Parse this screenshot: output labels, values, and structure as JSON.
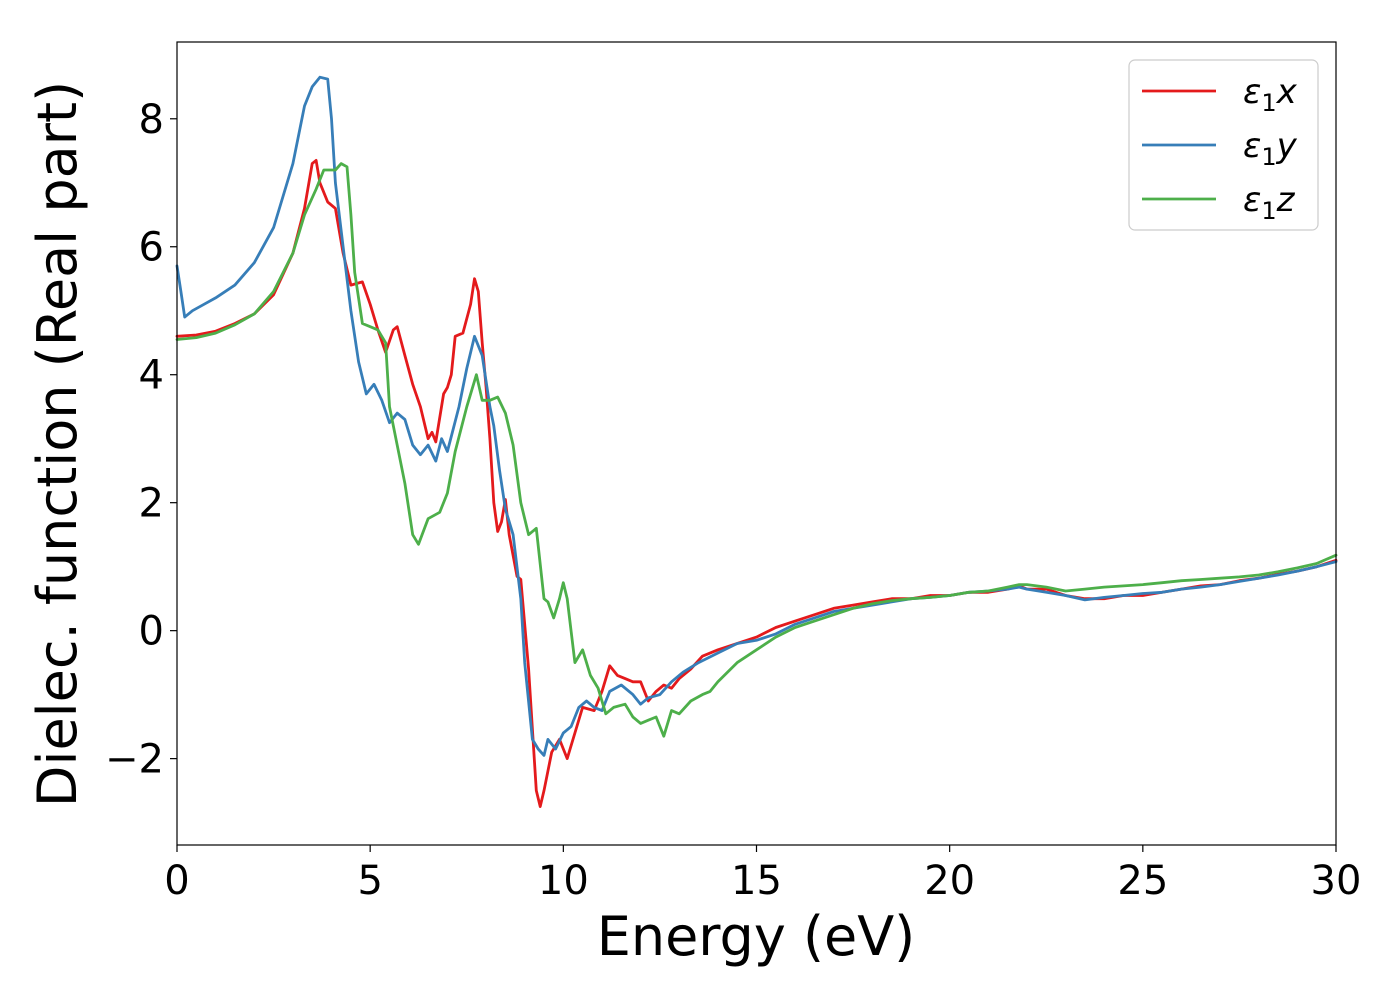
{
  "chart_data": {
    "type": "line",
    "title": "",
    "xlabel": "Energy (eV)",
    "ylabel": "Dielec. function (Real part)",
    "xlim": [
      0,
      30
    ],
    "ylim": [
      -3.35,
      9.2
    ],
    "xticks": [
      0,
      5,
      10,
      15,
      20,
      25,
      30
    ],
    "xtick_labels": [
      "0",
      "5",
      "10",
      "15",
      "20",
      "25",
      "30"
    ],
    "yticks": [
      -2,
      0,
      2,
      4,
      6,
      8
    ],
    "ytick_labels": [
      "−2",
      "0",
      "2",
      "4",
      "6",
      "8"
    ],
    "grid": false,
    "legend_position": "top-right",
    "series": [
      {
        "name": "ε₁x",
        "color": "#e41a1c",
        "points": [
          [
            0,
            4.6
          ],
          [
            0.5,
            4.62
          ],
          [
            1,
            4.68
          ],
          [
            1.5,
            4.8
          ],
          [
            2,
            4.95
          ],
          [
            2.5,
            5.25
          ],
          [
            3,
            5.9
          ],
          [
            3.3,
            6.6
          ],
          [
            3.5,
            7.3
          ],
          [
            3.6,
            7.35
          ],
          [
            3.7,
            7.0
          ],
          [
            3.9,
            6.7
          ],
          [
            4.1,
            6.6
          ],
          [
            4.3,
            5.9
          ],
          [
            4.5,
            5.4
          ],
          [
            4.8,
            5.45
          ],
          [
            5.0,
            5.1
          ],
          [
            5.2,
            4.7
          ],
          [
            5.4,
            4.35
          ],
          [
            5.6,
            4.7
          ],
          [
            5.7,
            4.75
          ],
          [
            5.9,
            4.3
          ],
          [
            6.1,
            3.85
          ],
          [
            6.3,
            3.5
          ],
          [
            6.5,
            3.0
          ],
          [
            6.6,
            3.1
          ],
          [
            6.7,
            2.95
          ],
          [
            6.9,
            3.7
          ],
          [
            7.0,
            3.8
          ],
          [
            7.1,
            4.0
          ],
          [
            7.2,
            4.6
          ],
          [
            7.4,
            4.65
          ],
          [
            7.6,
            5.1
          ],
          [
            7.7,
            5.5
          ],
          [
            7.8,
            5.3
          ],
          [
            7.9,
            4.5
          ],
          [
            8.0,
            3.8
          ],
          [
            8.1,
            3.0
          ],
          [
            8.2,
            2.0
          ],
          [
            8.3,
            1.55
          ],
          [
            8.4,
            1.7
          ],
          [
            8.5,
            2.05
          ],
          [
            8.6,
            1.5
          ],
          [
            8.8,
            0.85
          ],
          [
            8.9,
            0.8
          ],
          [
            9.1,
            -0.6
          ],
          [
            9.3,
            -2.5
          ],
          [
            9.4,
            -2.75
          ],
          [
            9.5,
            -2.5
          ],
          [
            9.7,
            -1.9
          ],
          [
            9.9,
            -1.7
          ],
          [
            10.1,
            -2.0
          ],
          [
            10.3,
            -1.6
          ],
          [
            10.5,
            -1.2
          ],
          [
            10.8,
            -1.25
          ],
          [
            11.0,
            -0.95
          ],
          [
            11.2,
            -0.55
          ],
          [
            11.4,
            -0.7
          ],
          [
            11.6,
            -0.75
          ],
          [
            11.8,
            -0.8
          ],
          [
            12.0,
            -0.8
          ],
          [
            12.2,
            -1.1
          ],
          [
            12.4,
            -0.95
          ],
          [
            12.6,
            -0.85
          ],
          [
            12.8,
            -0.9
          ],
          [
            13.0,
            -0.75
          ],
          [
            13.3,
            -0.6
          ],
          [
            13.6,
            -0.4
          ],
          [
            14.0,
            -0.3
          ],
          [
            14.5,
            -0.2
          ],
          [
            15.0,
            -0.1
          ],
          [
            15.5,
            0.05
          ],
          [
            16.0,
            0.15
          ],
          [
            16.5,
            0.25
          ],
          [
            17.0,
            0.35
          ],
          [
            17.5,
            0.4
          ],
          [
            18.0,
            0.45
          ],
          [
            18.5,
            0.5
          ],
          [
            19.0,
            0.5
          ],
          [
            19.5,
            0.55
          ],
          [
            20.0,
            0.55
          ],
          [
            20.5,
            0.6
          ],
          [
            21.0,
            0.6
          ],
          [
            21.5,
            0.65
          ],
          [
            21.8,
            0.7
          ],
          [
            22.0,
            0.65
          ],
          [
            22.5,
            0.65
          ],
          [
            23.0,
            0.55
          ],
          [
            23.5,
            0.5
          ],
          [
            24.0,
            0.5
          ],
          [
            24.5,
            0.55
          ],
          [
            25.0,
            0.55
          ],
          [
            25.5,
            0.6
          ],
          [
            26.0,
            0.65
          ],
          [
            26.5,
            0.7
          ],
          [
            27.0,
            0.72
          ],
          [
            27.5,
            0.78
          ],
          [
            28.0,
            0.82
          ],
          [
            28.5,
            0.88
          ],
          [
            29.0,
            0.93
          ],
          [
            29.5,
            1.0
          ],
          [
            30.0,
            1.1
          ]
        ]
      },
      {
        "name": "ε₁y",
        "color": "#377eb8",
        "points": [
          [
            0,
            5.7
          ],
          [
            0.1,
            5.3
          ],
          [
            0.2,
            4.9
          ],
          [
            0.4,
            5.0
          ],
          [
            0.7,
            5.1
          ],
          [
            1.0,
            5.2
          ],
          [
            1.5,
            5.4
          ],
          [
            2.0,
            5.75
          ],
          [
            2.5,
            6.3
          ],
          [
            3.0,
            7.3
          ],
          [
            3.3,
            8.2
          ],
          [
            3.5,
            8.5
          ],
          [
            3.7,
            8.65
          ],
          [
            3.9,
            8.62
          ],
          [
            4.0,
            8.0
          ],
          [
            4.1,
            7.0
          ],
          [
            4.3,
            6.0
          ],
          [
            4.5,
            5.0
          ],
          [
            4.7,
            4.2
          ],
          [
            4.9,
            3.7
          ],
          [
            5.1,
            3.85
          ],
          [
            5.3,
            3.6
          ],
          [
            5.5,
            3.25
          ],
          [
            5.7,
            3.4
          ],
          [
            5.9,
            3.3
          ],
          [
            6.1,
            2.9
          ],
          [
            6.3,
            2.75
          ],
          [
            6.5,
            2.9
          ],
          [
            6.7,
            2.65
          ],
          [
            6.85,
            3.0
          ],
          [
            7.0,
            2.8
          ],
          [
            7.3,
            3.5
          ],
          [
            7.5,
            4.1
          ],
          [
            7.7,
            4.6
          ],
          [
            7.9,
            4.3
          ],
          [
            8.1,
            3.5
          ],
          [
            8.2,
            3.2
          ],
          [
            8.35,
            2.5
          ],
          [
            8.5,
            1.9
          ],
          [
            8.7,
            1.5
          ],
          [
            8.9,
            0.5
          ],
          [
            9.0,
            -0.5
          ],
          [
            9.2,
            -1.7
          ],
          [
            9.35,
            -1.85
          ],
          [
            9.5,
            -1.95
          ],
          [
            9.6,
            -1.7
          ],
          [
            9.8,
            -1.85
          ],
          [
            10.0,
            -1.6
          ],
          [
            10.2,
            -1.5
          ],
          [
            10.4,
            -1.2
          ],
          [
            10.6,
            -1.1
          ],
          [
            10.8,
            -1.2
          ],
          [
            11.0,
            -1.25
          ],
          [
            11.2,
            -0.95
          ],
          [
            11.5,
            -0.85
          ],
          [
            11.8,
            -1.0
          ],
          [
            12.0,
            -1.15
          ],
          [
            12.2,
            -1.05
          ],
          [
            12.5,
            -1.0
          ],
          [
            12.8,
            -0.8
          ],
          [
            13.1,
            -0.65
          ],
          [
            13.5,
            -0.5
          ],
          [
            14.0,
            -0.35
          ],
          [
            14.5,
            -0.2
          ],
          [
            15.0,
            -0.15
          ],
          [
            15.5,
            -0.05
          ],
          [
            16.0,
            0.1
          ],
          [
            16.5,
            0.2
          ],
          [
            17.0,
            0.3
          ],
          [
            17.5,
            0.35
          ],
          [
            18.0,
            0.4
          ],
          [
            18.5,
            0.45
          ],
          [
            19.0,
            0.5
          ],
          [
            19.5,
            0.52
          ],
          [
            20.0,
            0.55
          ],
          [
            20.5,
            0.6
          ],
          [
            21.0,
            0.62
          ],
          [
            21.5,
            0.65
          ],
          [
            21.8,
            0.68
          ],
          [
            22.0,
            0.65
          ],
          [
            22.5,
            0.6
          ],
          [
            23.0,
            0.55
          ],
          [
            23.5,
            0.48
          ],
          [
            24.0,
            0.52
          ],
          [
            24.5,
            0.55
          ],
          [
            25.0,
            0.58
          ],
          [
            25.5,
            0.6
          ],
          [
            26.0,
            0.65
          ],
          [
            26.5,
            0.68
          ],
          [
            27.0,
            0.72
          ],
          [
            27.5,
            0.77
          ],
          [
            28.0,
            0.82
          ],
          [
            28.5,
            0.87
          ],
          [
            29.0,
            0.93
          ],
          [
            29.5,
            1.0
          ],
          [
            30.0,
            1.08
          ]
        ]
      },
      {
        "name": "ε₁z",
        "color": "#4daf4a",
        "points": [
          [
            0,
            4.55
          ],
          [
            0.5,
            4.58
          ],
          [
            1,
            4.65
          ],
          [
            1.5,
            4.78
          ],
          [
            2,
            4.95
          ],
          [
            2.5,
            5.3
          ],
          [
            3.0,
            5.9
          ],
          [
            3.3,
            6.5
          ],
          [
            3.6,
            6.9
          ],
          [
            3.8,
            7.2
          ],
          [
            4.0,
            7.2
          ],
          [
            4.1,
            7.2
          ],
          [
            4.25,
            7.3
          ],
          [
            4.4,
            7.25
          ],
          [
            4.5,
            6.5
          ],
          [
            4.6,
            5.6
          ],
          [
            4.8,
            4.8
          ],
          [
            5.0,
            4.75
          ],
          [
            5.2,
            4.7
          ],
          [
            5.4,
            4.5
          ],
          [
            5.5,
            3.5
          ],
          [
            5.7,
            2.9
          ],
          [
            5.9,
            2.3
          ],
          [
            6.1,
            1.5
          ],
          [
            6.25,
            1.35
          ],
          [
            6.5,
            1.75
          ],
          [
            6.8,
            1.85
          ],
          [
            7.0,
            2.15
          ],
          [
            7.2,
            2.8
          ],
          [
            7.5,
            3.5
          ],
          [
            7.75,
            4.0
          ],
          [
            7.9,
            3.6
          ],
          [
            8.1,
            3.6
          ],
          [
            8.3,
            3.65
          ],
          [
            8.5,
            3.4
          ],
          [
            8.7,
            2.9
          ],
          [
            8.9,
            2.0
          ],
          [
            9.1,
            1.5
          ],
          [
            9.3,
            1.6
          ],
          [
            9.5,
            0.5
          ],
          [
            9.6,
            0.45
          ],
          [
            9.75,
            0.2
          ],
          [
            9.9,
            0.5
          ],
          [
            10.0,
            0.75
          ],
          [
            10.1,
            0.5
          ],
          [
            10.3,
            -0.5
          ],
          [
            10.5,
            -0.3
          ],
          [
            10.7,
            -0.7
          ],
          [
            10.9,
            -0.9
          ],
          [
            11.1,
            -1.3
          ],
          [
            11.3,
            -1.2
          ],
          [
            11.6,
            -1.15
          ],
          [
            11.8,
            -1.35
          ],
          [
            12.0,
            -1.45
          ],
          [
            12.2,
            -1.4
          ],
          [
            12.4,
            -1.35
          ],
          [
            12.6,
            -1.65
          ],
          [
            12.8,
            -1.25
          ],
          [
            13.0,
            -1.3
          ],
          [
            13.3,
            -1.1
          ],
          [
            13.6,
            -1.0
          ],
          [
            13.8,
            -0.95
          ],
          [
            14.0,
            -0.8
          ],
          [
            14.5,
            -0.5
          ],
          [
            15.0,
            -0.3
          ],
          [
            15.5,
            -0.1
          ],
          [
            16.0,
            0.05
          ],
          [
            16.5,
            0.15
          ],
          [
            17.0,
            0.25
          ],
          [
            17.5,
            0.35
          ],
          [
            18.0,
            0.42
          ],
          [
            18.5,
            0.47
          ],
          [
            19.0,
            0.5
          ],
          [
            19.5,
            0.52
          ],
          [
            20.0,
            0.55
          ],
          [
            20.5,
            0.6
          ],
          [
            21.0,
            0.62
          ],
          [
            21.5,
            0.68
          ],
          [
            21.8,
            0.72
          ],
          [
            22.0,
            0.72
          ],
          [
            22.5,
            0.68
          ],
          [
            23.0,
            0.62
          ],
          [
            23.5,
            0.65
          ],
          [
            24.0,
            0.68
          ],
          [
            24.5,
            0.7
          ],
          [
            25.0,
            0.72
          ],
          [
            25.5,
            0.75
          ],
          [
            26.0,
            0.78
          ],
          [
            26.5,
            0.8
          ],
          [
            27.0,
            0.82
          ],
          [
            27.5,
            0.84
          ],
          [
            28.0,
            0.87
          ],
          [
            28.5,
            0.92
          ],
          [
            29.0,
            0.98
          ],
          [
            29.5,
            1.05
          ],
          [
            30.0,
            1.18
          ]
        ]
      }
    ]
  },
  "legend": [
    {
      "base": "ε",
      "sub": "1",
      "var": "x",
      "color": "#e41a1c"
    },
    {
      "base": "ε",
      "sub": "1",
      "var": "y",
      "color": "#377eb8"
    },
    {
      "base": "ε",
      "sub": "1",
      "var": "z",
      "color": "#4daf4a"
    }
  ]
}
